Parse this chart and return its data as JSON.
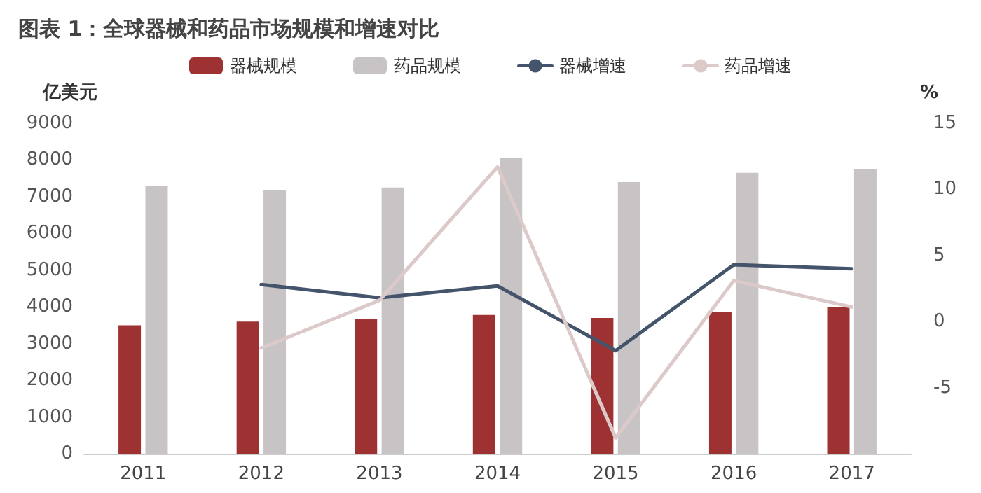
{
  "chart_data": {
    "type": "bar",
    "title": "图表 1：全球器械和药品市场规模和增速对比",
    "ylabel": "亿美元",
    "y2label": "%",
    "categories": [
      "2011",
      "2012",
      "2013",
      "2014",
      "2015",
      "2016",
      "2017"
    ],
    "series": [
      {
        "name": "器械规模",
        "color": "#9e3233",
        "values": [
          3500,
          3600,
          3680,
          3780,
          3700,
          3850,
          4000
        ]
      },
      {
        "name": "药品规模",
        "color": "#c8c4c6",
        "values": [
          7300,
          7180,
          7250,
          8050,
          7400,
          7650,
          7750
        ]
      },
      {
        "name": "器械增速",
        "type": "line",
        "axis": "y2",
        "color": "#44546a",
        "values": [
          null,
          2.8,
          1.8,
          2.7,
          -2.2,
          4.3,
          4.0
        ]
      },
      {
        "name": "药品增速",
        "type": "line",
        "axis": "y2",
        "color": "#dcc9ca",
        "values": [
          null,
          -2.0,
          1.6,
          11.7,
          -8.8,
          3.1,
          1.1
        ]
      }
    ],
    "ylim": [
      0,
      9000
    ],
    "yticks": [
      0,
      1000,
      2000,
      3000,
      4000,
      5000,
      6000,
      7000,
      8000,
      9000
    ],
    "y2lim": [
      -10,
      15
    ],
    "y2ticks": [
      -5,
      0,
      5,
      10,
      15
    ],
    "grid": false,
    "legend": "top",
    "marker": "none",
    "line_style": "solid"
  }
}
